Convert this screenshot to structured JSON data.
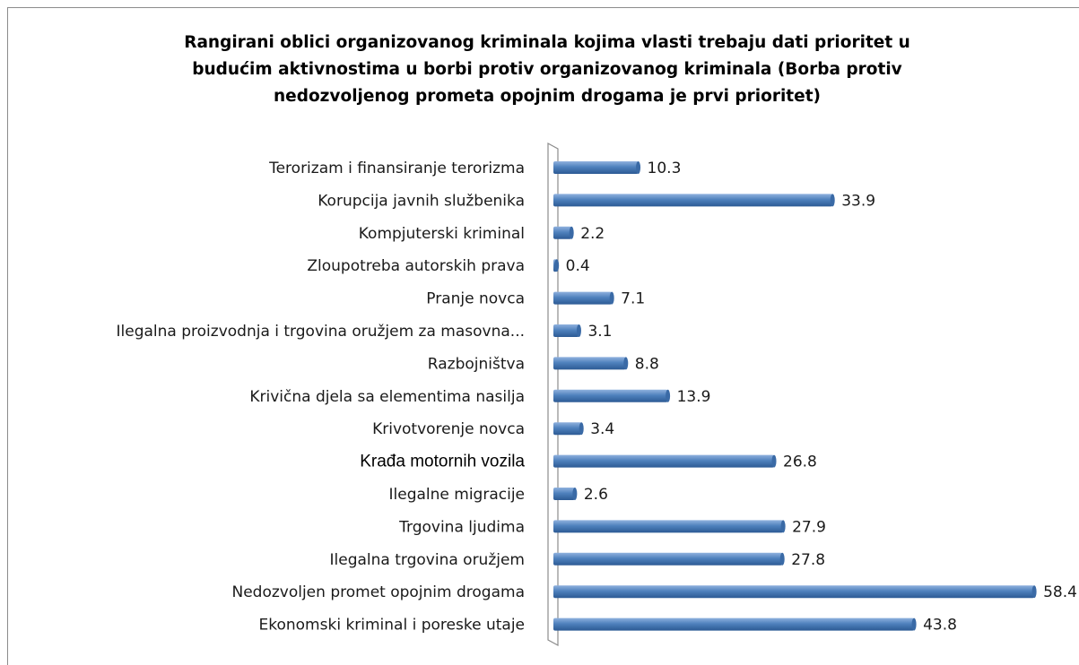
{
  "chart_data": {
    "type": "bar",
    "orientation": "horizontal",
    "title": "Rangirani oblici organizovanog kriminala kojima vlasti trebaju dati prioritet u budućim aktivnostima u borbi protiv organizovanog kriminala (Borba protiv nedozvoljenog prometa opojnim drogama je prvi prioritet)",
    "categories": [
      "Terorizam i finansiranje terorizma",
      "Korupcija javnih službenika",
      "Kompjuterski kriminal",
      "Zloupotreba autorskih prava",
      "Pranje novca",
      "Ilegalna proizvodnja i trgovina oružjem za masovna...",
      "Razbojništva",
      "Krivična djela sa elementima nasilja",
      "Krivotvorenje novca",
      "Krađa motornih vozila",
      "Ilegalne migracije",
      "Trgovina ljudima",
      "Ilegalna trgovina oružjem",
      "Nedozvoljen promet opojnim drogama",
      "Ekonomski kriminal i poreske utaje"
    ],
    "values": [
      10.3,
      33.9,
      2.2,
      0.4,
      7.1,
      3.1,
      8.8,
      13.9,
      3.4,
      26.8,
      2.6,
      27.9,
      27.8,
      58.4,
      43.8
    ],
    "color": "#4f81bd"
  }
}
